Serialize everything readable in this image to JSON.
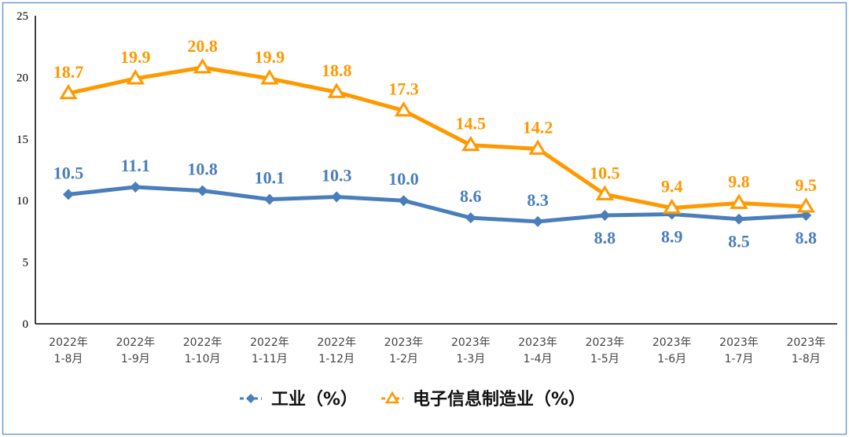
{
  "chart_data": {
    "type": "line",
    "categories": [
      [
        "2022年",
        "1-8月"
      ],
      [
        "2022年",
        "1-9月"
      ],
      [
        "2022年",
        "1-10月"
      ],
      [
        "2022年",
        "1-11月"
      ],
      [
        "2022年",
        "1-12月"
      ],
      [
        "2023年",
        "1-2月"
      ],
      [
        "2023年",
        "1-3月"
      ],
      [
        "2023年",
        "1-4月"
      ],
      [
        "2023年",
        "1-5月"
      ],
      [
        "2023年",
        "1-6月"
      ],
      [
        "2023年",
        "1-7月"
      ],
      [
        "2023年",
        "1-8月"
      ]
    ],
    "yticks": [
      "0",
      "5",
      "10",
      "15",
      "20",
      "25"
    ],
    "ylim": [
      0,
      25
    ],
    "grid": false,
    "legend_position": "bottom",
    "series": [
      {
        "name": "工业（%）",
        "color": "#4a7ebb",
        "marker": "diamond",
        "values": [
          10.5,
          11.1,
          10.8,
          10.1,
          10.3,
          10.0,
          8.6,
          8.3,
          8.8,
          8.9,
          8.5,
          8.8
        ],
        "labels": [
          "10.5",
          "11.1",
          "10.8",
          "10.1",
          "10.3",
          "10.0",
          "8.6",
          "8.3",
          "8.8",
          "8.9",
          "8.5",
          "8.8"
        ]
      },
      {
        "name": "电子信息制造业（%）",
        "color": "#ff9900",
        "marker": "triangle",
        "values": [
          18.7,
          19.9,
          20.8,
          19.9,
          18.8,
          17.3,
          14.5,
          14.2,
          10.5,
          9.4,
          9.8,
          9.5
        ],
        "labels": [
          "18.7",
          "19.9",
          "20.8",
          "19.9",
          "18.8",
          "17.3",
          "14.5",
          "14.2",
          "10.5",
          "9.4",
          "9.8",
          "9.5"
        ]
      }
    ]
  }
}
